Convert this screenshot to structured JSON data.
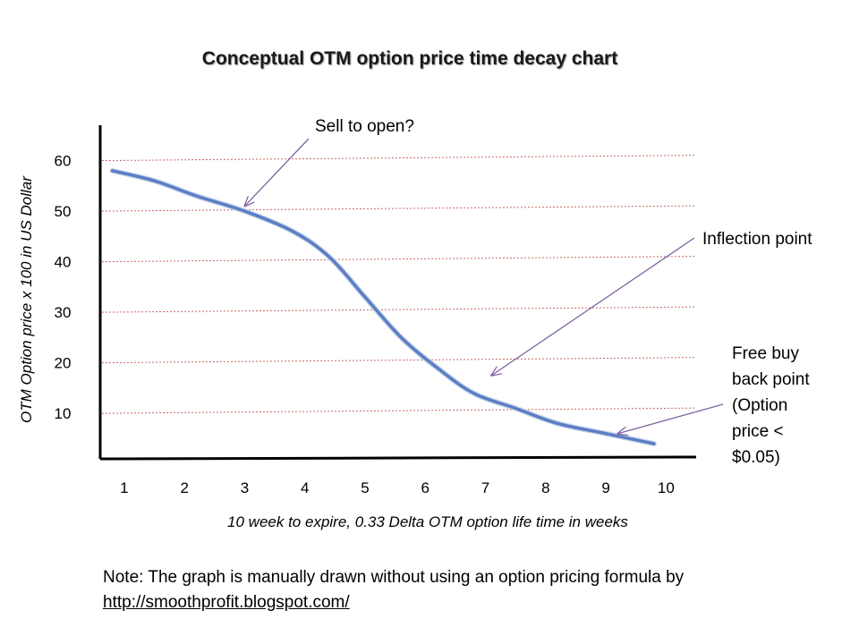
{
  "chart_data": {
    "type": "line",
    "title": "Conceptual OTM option price time decay chart",
    "xlabel": "10 week to expire, 0.33 Delta OTM option life time in weeks",
    "ylabel": "OTM Option price x 100 in US Dollar",
    "x_ticks": [
      "1",
      "2",
      "3",
      "4",
      "5",
      "6",
      "7",
      "8",
      "9",
      "10"
    ],
    "y_ticks": [
      "60",
      "50",
      "40",
      "30",
      "20",
      "10"
    ],
    "y_tick_values": [
      60,
      50,
      40,
      30,
      20,
      10
    ],
    "xlim": [
      0.6,
      10.5
    ],
    "ylim": [
      1,
      67
    ],
    "grid": "horizontal dashed",
    "series": [
      {
        "color": "#5b7fc4",
        "x": [
          0.8,
          1.5,
          2.2,
          3.0,
          3.8,
          4.4,
          5.0,
          5.6,
          6.2,
          6.8,
          7.5,
          8.2,
          9.0,
          9.8
        ],
        "y": [
          58,
          56,
          53,
          50,
          46,
          41,
          33,
          25,
          19,
          14,
          11,
          8,
          6,
          4
        ]
      }
    ],
    "annotations": [
      {
        "id": "sell",
        "text": "Sell to open?",
        "x": 3.0,
        "y": 51
      },
      {
        "id": "inflection",
        "text": "Inflection point",
        "x": 7.1,
        "y": 17.5
      },
      {
        "id": "buyback",
        "text": "Free buy back point (Option price < $0.05)",
        "x": 9.2,
        "y": 6
      }
    ]
  },
  "annotations": {
    "sell": "Sell to open?",
    "inflection": "Inflection point",
    "buyback_lines": [
      "Free buy",
      "back point",
      "(Option",
      "price <",
      "$0.05)"
    ]
  },
  "note": {
    "text": "Note: The graph is manually drawn without using an option pricing formula by",
    "link": "http://smoothprofit.blogspot.com/"
  },
  "colors": {
    "curve": "#5b7fc4",
    "gridline": "#c0504d",
    "arrow": "#8064a2",
    "axis": "#000000"
  }
}
